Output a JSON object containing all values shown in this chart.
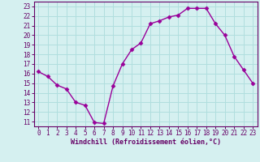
{
  "x": [
    0,
    1,
    2,
    3,
    4,
    5,
    6,
    7,
    8,
    9,
    10,
    11,
    12,
    13,
    14,
    15,
    16,
    17,
    18,
    19,
    20,
    21,
    22,
    23
  ],
  "y": [
    16.2,
    15.7,
    14.8,
    14.4,
    13.0,
    12.7,
    10.9,
    10.8,
    14.7,
    17.0,
    18.5,
    19.2,
    21.2,
    21.5,
    21.9,
    22.1,
    22.8,
    22.8,
    22.8,
    21.2,
    20.0,
    17.8,
    16.4,
    15.0
  ],
  "line_color": "#990099",
  "marker": "D",
  "marker_size": 2.5,
  "xlabel": "Windchill (Refroidissement éolien,°C)",
  "xlabel_color": "#660066",
  "ylabel_ticks": [
    11,
    12,
    13,
    14,
    15,
    16,
    17,
    18,
    19,
    20,
    21,
    22,
    23
  ],
  "xtick_labels": [
    "0",
    "1",
    "2",
    "3",
    "4",
    "5",
    "6",
    "7",
    "8",
    "9",
    "10",
    "11",
    "12",
    "13",
    "14",
    "15",
    "16",
    "17",
    "18",
    "19",
    "20",
    "21",
    "22",
    "23"
  ],
  "ylim": [
    10.5,
    23.5
  ],
  "xlim": [
    -0.5,
    23.5
  ],
  "bg_color": "#d5f0f0",
  "grid_color": "#b0dede",
  "tick_color": "#660066",
  "spine_color": "#660066",
  "line_width": 1.0,
  "xtick_fontsize": 5.5,
  "ytick_fontsize": 5.5,
  "xlabel_fontsize": 6.0
}
